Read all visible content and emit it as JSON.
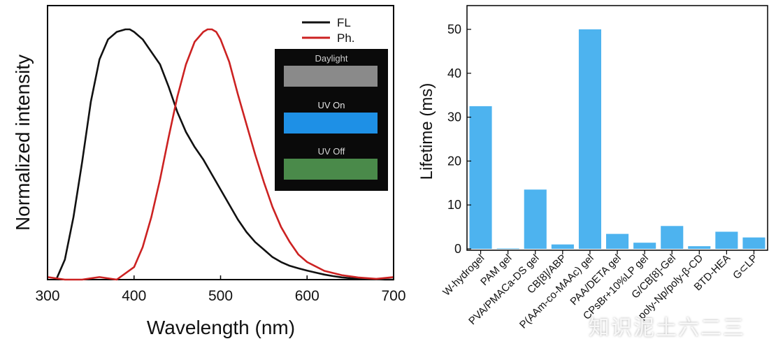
{
  "chart_data": [
    {
      "type": "line",
      "xlabel": "Wavelength (nm)",
      "ylabel": "Normalized intensity",
      "xlim": [
        300,
        700
      ],
      "xticks": [
        "300",
        "400",
        "500",
        "600",
        "700"
      ],
      "yticks_shown": false,
      "grid": false,
      "legend": "top-right",
      "series": [
        {
          "name": "FL",
          "color": "#111111",
          "x": [
            310,
            320,
            330,
            340,
            350,
            360,
            370,
            380,
            390,
            395,
            400,
            410,
            420,
            430,
            440,
            450,
            460,
            470,
            480,
            490,
            500,
            510,
            520,
            530,
            540,
            550,
            560,
            570,
            580,
            590,
            600,
            610,
            620,
            630,
            640,
            650,
            660,
            670,
            680,
            690,
            700
          ],
          "y": [
            0.0,
            0.08,
            0.25,
            0.47,
            0.71,
            0.88,
            0.96,
            0.99,
            1.0,
            1.0,
            0.99,
            0.96,
            0.91,
            0.86,
            0.77,
            0.67,
            0.59,
            0.53,
            0.48,
            0.42,
            0.36,
            0.3,
            0.24,
            0.19,
            0.15,
            0.12,
            0.09,
            0.07,
            0.055,
            0.045,
            0.036,
            0.028,
            0.02,
            0.014,
            0.009,
            0.006,
            0.003,
            0.002,
            0.001,
            0.0,
            0.0
          ]
        },
        {
          "name": "Ph.",
          "color": "#cc2222",
          "x": [
            300,
            320,
            340,
            360,
            380,
            400,
            410,
            420,
            430,
            440,
            450,
            460,
            470,
            480,
            485,
            490,
            495,
            500,
            510,
            520,
            530,
            540,
            550,
            560,
            570,
            580,
            590,
            600,
            620,
            640,
            660,
            680,
            700
          ],
          "y": [
            0.01,
            0.0,
            0.0,
            0.01,
            0.0,
            0.05,
            0.13,
            0.25,
            0.4,
            0.57,
            0.73,
            0.86,
            0.95,
            0.99,
            1.0,
            1.0,
            0.99,
            0.96,
            0.87,
            0.74,
            0.62,
            0.5,
            0.39,
            0.29,
            0.21,
            0.15,
            0.1,
            0.07,
            0.035,
            0.018,
            0.008,
            0.003,
            0.01
          ]
        }
      ],
      "inset": {
        "panels": [
          {
            "label": "Daylight",
            "strip_color": "#8a8a8a"
          },
          {
            "label": "UV On",
            "strip_color": "#1e90e6"
          },
          {
            "label": "UV Off",
            "strip_color": "#4a8a4a"
          }
        ],
        "background": "#0a0a0a"
      }
    },
    {
      "type": "bar",
      "ylabel": "Lifetime (ms)",
      "ylim": [
        0,
        55
      ],
      "yticks": [
        0,
        10,
        20,
        30,
        40,
        50
      ],
      "bar_color": "#4db3ef",
      "categories": [
        "W-hydrogel",
        "PAM gel",
        "PVA/PMACa-DS gel",
        "CB[8]/ABP",
        "P(AAm-co-MAAc) gel",
        "PAA/DETA gel",
        "CPsBr+10%LP gel",
        "G/CB[8]-Gel",
        "poly-Np/poly-β-CD",
        "BTD-HEA",
        "G⊂LP"
      ],
      "values": [
        32.5,
        0.1,
        13.5,
        1.0,
        50.0,
        3.4,
        1.4,
        5.2,
        0.6,
        3.9,
        2.6
      ]
    }
  ],
  "watermark": "知识泥土六二三"
}
